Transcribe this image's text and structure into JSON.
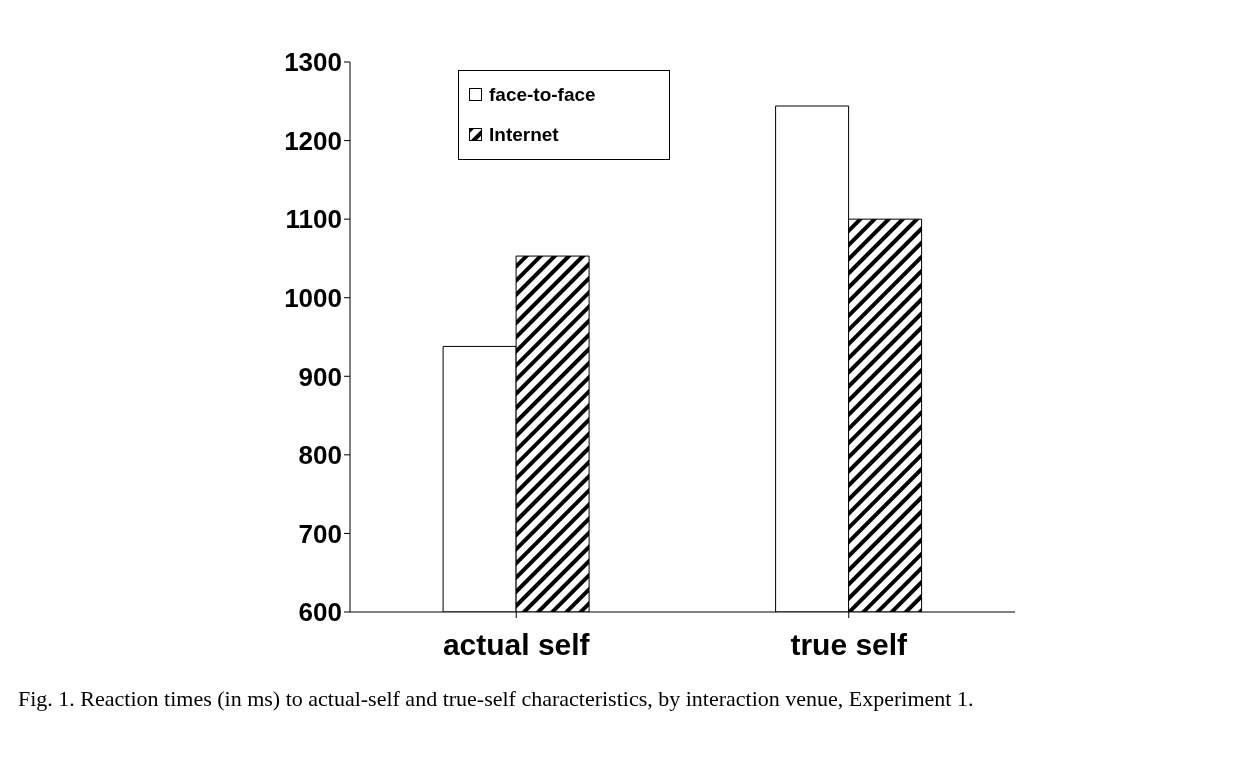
{
  "chart_data": {
    "type": "bar",
    "categories": [
      "actual self",
      "true self"
    ],
    "series": [
      {
        "name": "face-to-face",
        "color": "#ffffff",
        "values": [
          938,
          1244
        ]
      },
      {
        "name": "Internet",
        "color": "#000000",
        "values": [
          1053,
          1100
        ]
      }
    ],
    "ylim": [
      600,
      1300
    ],
    "yticks": [
      600,
      700,
      800,
      900,
      1000,
      1100,
      1200,
      1300
    ],
    "grid": false,
    "legend": "top left",
    "annotations": [
      "Fig. 1. Reaction times (in ms) to actual-self and true-self characteristics, by interaction venue, Experiment 1."
    ]
  }
}
